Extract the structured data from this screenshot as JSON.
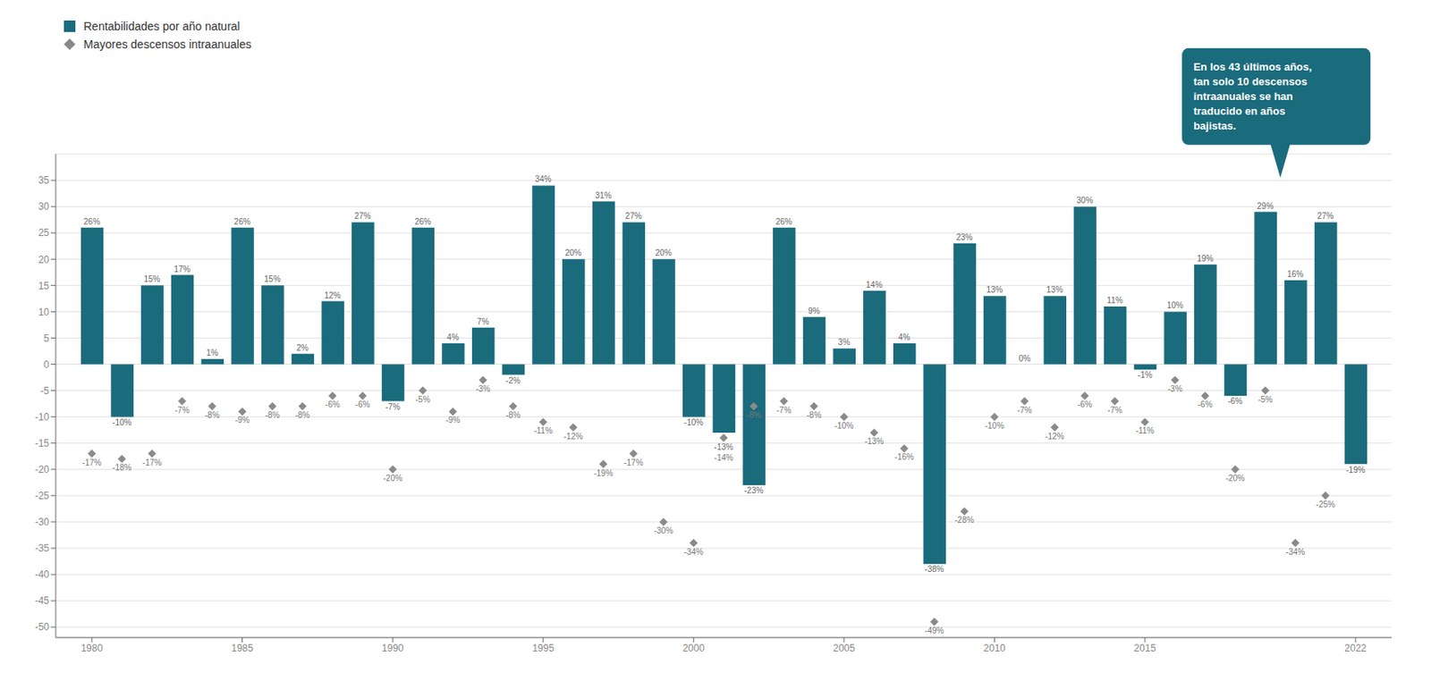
{
  "chart_data": {
    "type": "bar",
    "x": [
      1980,
      1981,
      1982,
      1983,
      1984,
      1985,
      1986,
      1987,
      1988,
      1989,
      1990,
      1991,
      1992,
      1993,
      1994,
      1995,
      1996,
      1997,
      1998,
      1999,
      2000,
      2001,
      2002,
      2003,
      2004,
      2005,
      2006,
      2007,
      2008,
      2009,
      2010,
      2011,
      2012,
      2013,
      2014,
      2015,
      2016,
      2017,
      2018,
      2019,
      2020,
      2021,
      2022
    ],
    "xlim": [
      1978.8,
      2023.2
    ],
    "xticks": [
      1980,
      1985,
      1990,
      1995,
      2000,
      2005,
      2010,
      2015,
      2022
    ],
    "ylim": [
      -52,
      40
    ],
    "yticks": [
      -50,
      -45,
      -40,
      -35,
      -30,
      -25,
      -20,
      -15,
      -10,
      -5,
      0,
      5,
      10,
      15,
      20,
      25,
      30,
      35
    ],
    "grid": true,
    "legend": "upper left",
    "data_labels": true,
    "annotation": "En los 43 últimos años,\ntan solo 10 descensos\nintraanuales se han\ntraducido en años\nbajistas.",
    "series": [
      {
        "name": "Rentabilidades por año natural",
        "type": "bar",
        "color": "#1a6b7c",
        "values": [
          26,
          -10,
          15,
          17,
          1,
          26,
          15,
          2,
          12,
          27,
          -7,
          26,
          4,
          7,
          -2,
          34,
          20,
          31,
          27,
          20,
          -10,
          -13,
          -23,
          26,
          9,
          3,
          14,
          4,
          -38,
          23,
          13,
          0,
          13,
          30,
          11,
          -1,
          10,
          19,
          -6,
          29,
          16,
          27,
          -19
        ],
        "value_labels": [
          "26%",
          "-10%",
          "15%",
          "17%",
          "1%",
          "26%",
          "15%",
          "2%",
          "12%",
          "27%",
          "-7%",
          "26%",
          "4%",
          "7%",
          "-2%",
          "34%",
          "20%",
          "31%",
          "27%",
          "20%",
          "-10%",
          "-13%",
          "-23%",
          "26%",
          "9%",
          "3%",
          "14%",
          "4%",
          "-38%",
          "23%",
          "13%",
          "0%",
          "13%",
          "30%",
          "11%",
          "-1%",
          "10%",
          "19%",
          "-6%",
          "29%",
          "16%",
          "27%",
          "-19%"
        ]
      },
      {
        "name": "Mayores descensos intraanuales",
        "type": "scatter",
        "marker": "diamond",
        "color": "#8a8a8a",
        "values": [
          -17,
          -18,
          -17,
          -7,
          -8,
          -9,
          -8,
          -8,
          -6,
          -6,
          -20,
          -5,
          -9,
          -3,
          -8,
          -11,
          -12,
          -19,
          -17,
          -30,
          -34,
          -14,
          -8,
          -7,
          -8,
          -10,
          -13,
          -16,
          -49,
          -28,
          -10,
          -7,
          -12,
          -6,
          -7,
          -11,
          -3,
          -6,
          -20,
          -5,
          -34,
          -25,
          null
        ],
        "value_labels": [
          "-17%",
          "-18%",
          "-17%",
          "-7%",
          "-8%",
          "-9%",
          "-8%",
          "-8%",
          "-6%",
          "-6%",
          "-20%",
          "-5%",
          "-9%",
          "-3%",
          "-8%",
          "-11%",
          "-12%",
          "-19%",
          "-17%",
          "-30%",
          "-34%",
          "-14%",
          "-8%",
          "-7%",
          "-8%",
          "-10%",
          "-13%",
          "-16%",
          "-49%",
          "-28%",
          "-10%",
          "-7%",
          "-12%",
          "-6%",
          "-7%",
          "-11%",
          "-3%",
          "-6%",
          "-20%",
          "-5%",
          "-34%",
          "-25%",
          null
        ]
      }
    ]
  }
}
